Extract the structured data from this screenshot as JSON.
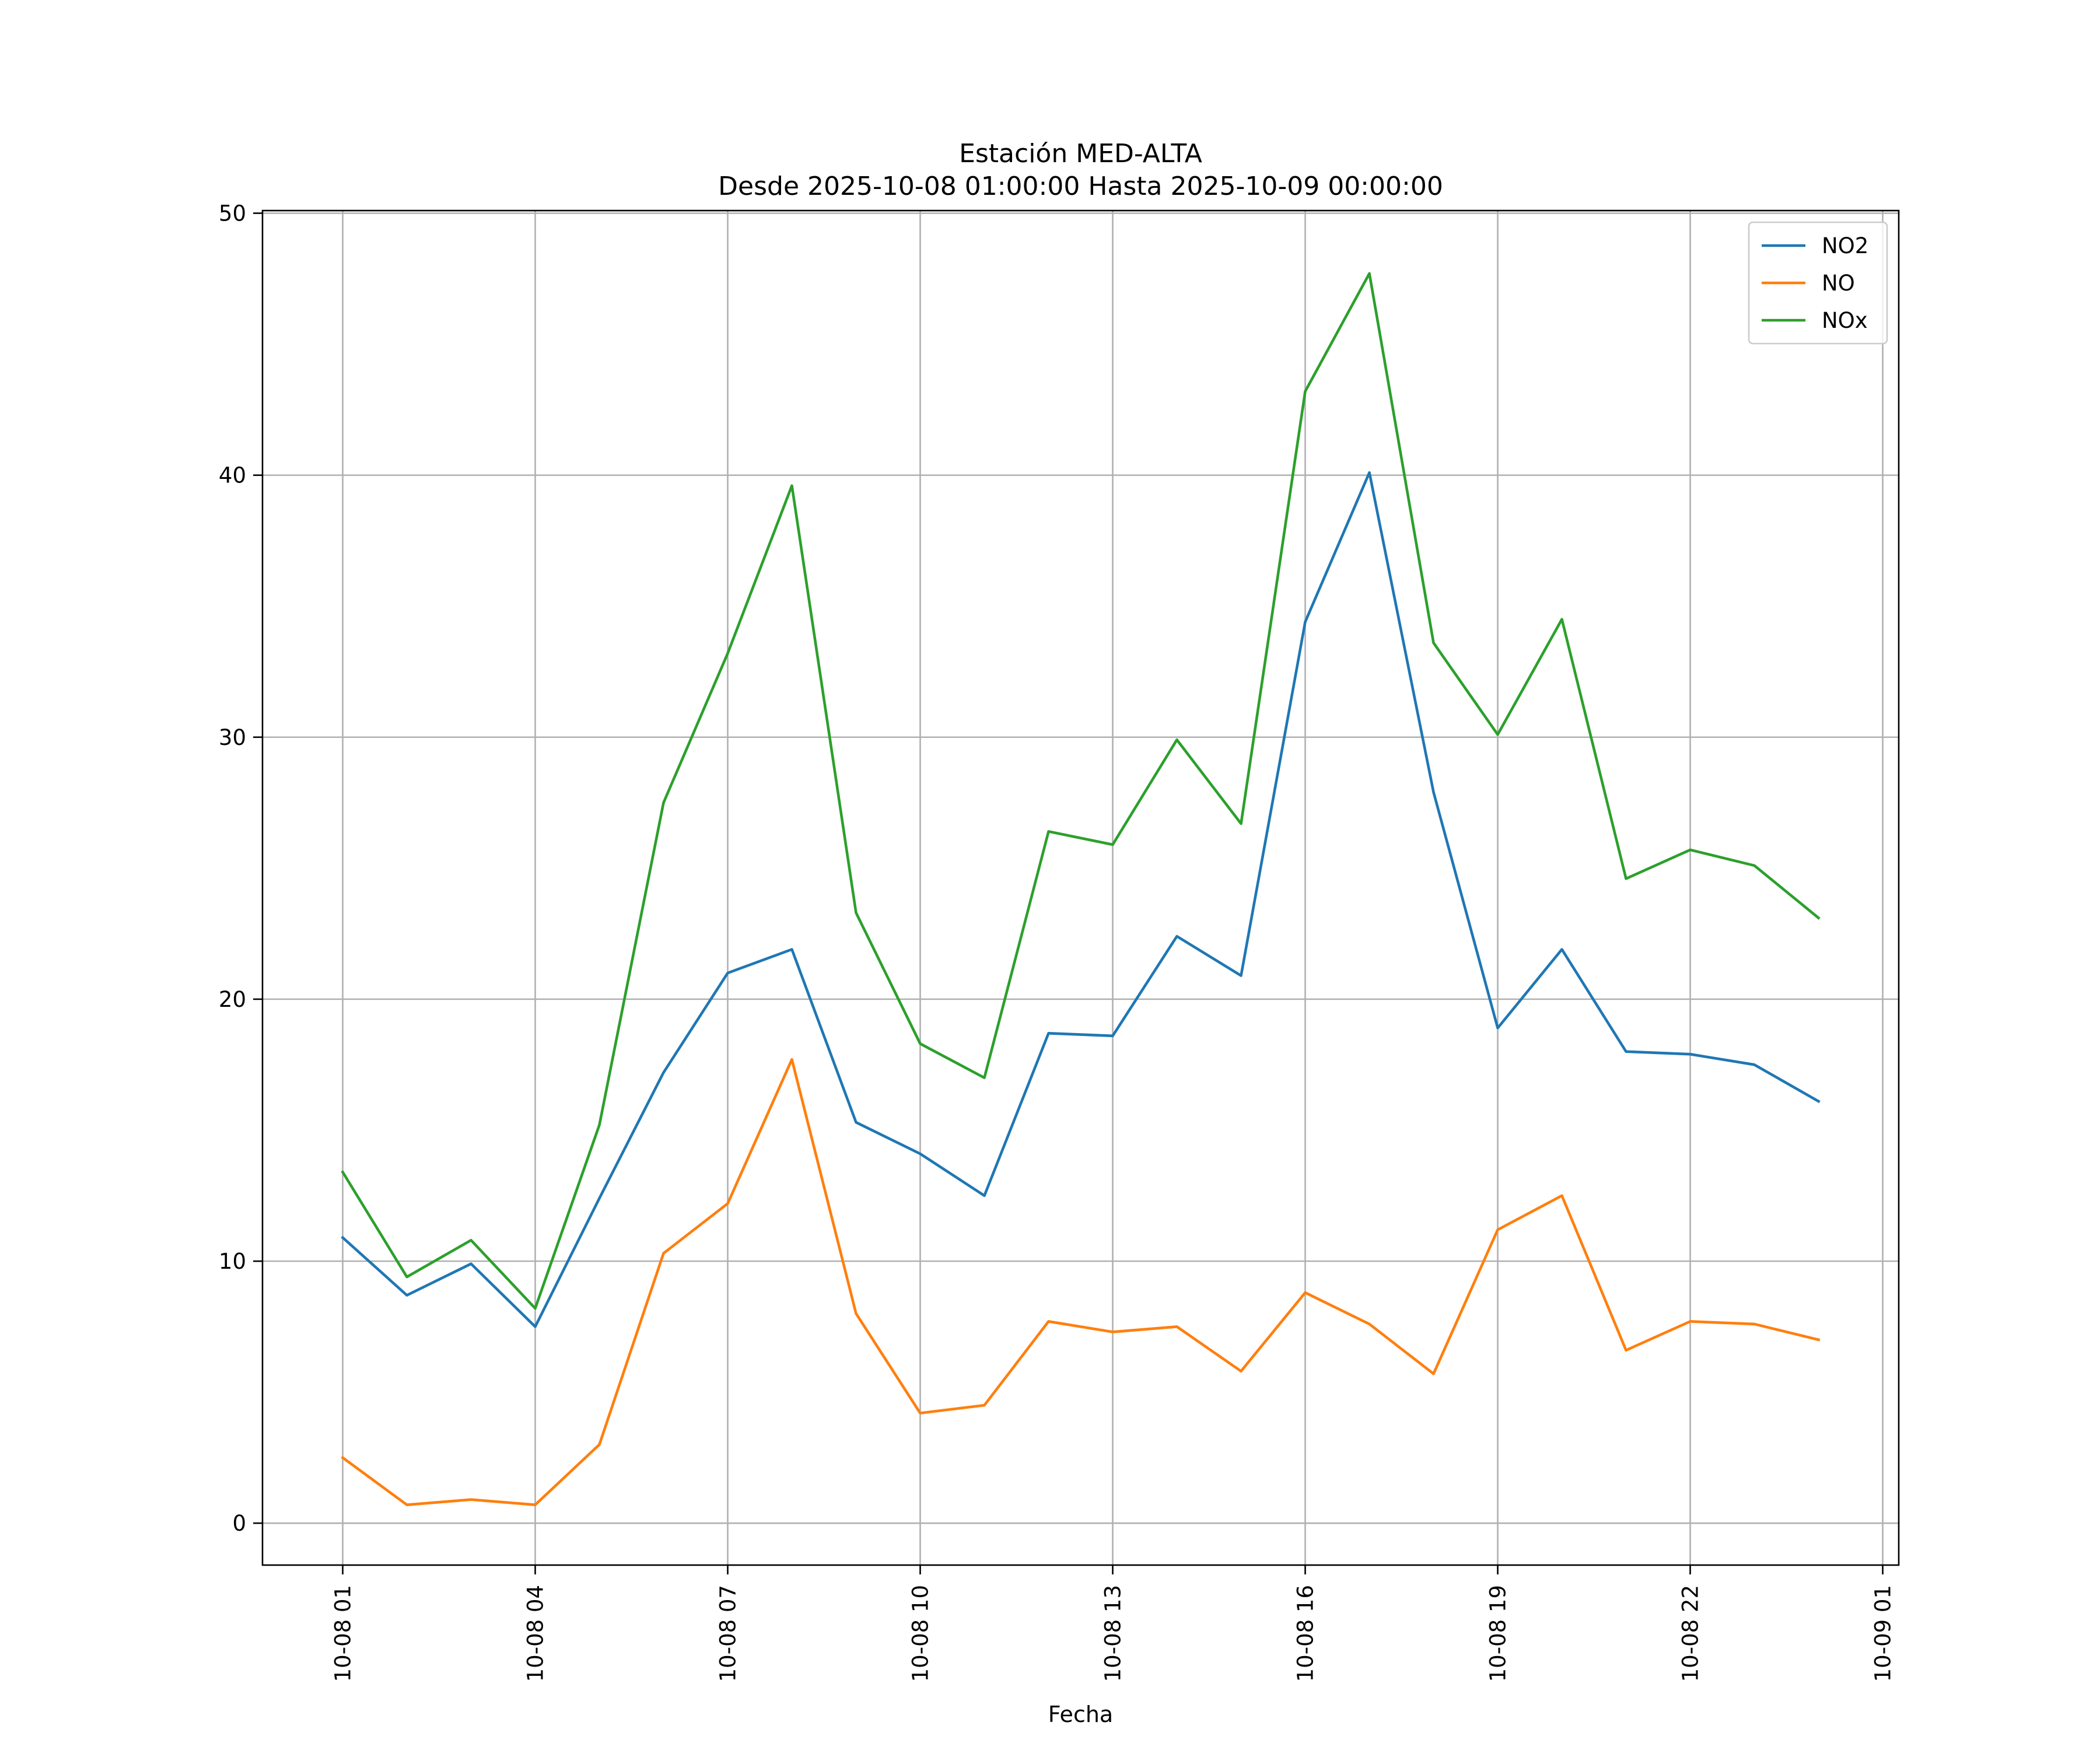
{
  "chart_data": {
    "type": "line",
    "title": "Estación MED-ALTA",
    "subtitle": "Desde 2025-10-08 01:00:00 Hasta 2025-10-09 00:00:00",
    "xlabel": "Fecha",
    "ylabel": "",
    "x": [
      "10-08 01",
      "10-08 02",
      "10-08 03",
      "10-08 04",
      "10-08 05",
      "10-08 06",
      "10-08 07",
      "10-08 08",
      "10-08 09",
      "10-08 10",
      "10-08 11",
      "10-08 12",
      "10-08 13",
      "10-08 14",
      "10-08 15",
      "10-08 16",
      "10-08 17",
      "10-08 18",
      "10-08 19",
      "10-08 20",
      "10-08 21",
      "10-08 22",
      "10-08 23",
      "10-09 00"
    ],
    "xticks": [
      "10-08 01",
      "10-08 04",
      "10-08 07",
      "10-08 10",
      "10-08 13",
      "10-08 16",
      "10-08 19",
      "10-08 22",
      "10-09 01"
    ],
    "xlim": [
      -1.25,
      24.25
    ],
    "ylim": [
      -1.6,
      50.1
    ],
    "yticks": [
      0,
      10,
      20,
      30,
      40,
      50
    ],
    "grid": true,
    "legend_position": "top-right",
    "series": [
      {
        "name": "NO2",
        "color": "#1f77b4",
        "values": [
          10.9,
          8.7,
          9.9,
          7.5,
          12.4,
          17.2,
          21.0,
          21.9,
          15.3,
          14.1,
          12.5,
          18.7,
          18.6,
          22.4,
          20.9,
          34.4,
          40.1,
          27.9,
          18.9,
          21.9,
          18.0,
          17.9,
          17.5,
          16.1
        ]
      },
      {
        "name": "NO",
        "color": "#ff7f0e",
        "values": [
          2.5,
          0.7,
          0.9,
          0.7,
          3.0,
          10.3,
          12.2,
          17.7,
          8.0,
          4.2,
          4.5,
          7.7,
          7.3,
          7.5,
          5.8,
          8.8,
          7.6,
          5.7,
          11.2,
          12.5,
          6.6,
          7.7,
          7.6,
          7.0
        ]
      },
      {
        "name": "NOx",
        "color": "#2ca02c",
        "values": [
          13.4,
          9.4,
          10.8,
          8.2,
          15.2,
          27.5,
          33.2,
          39.6,
          23.3,
          18.3,
          17.0,
          26.4,
          25.9,
          29.9,
          26.7,
          43.2,
          47.7,
          33.6,
          30.1,
          34.5,
          24.6,
          25.7,
          25.1,
          23.1
        ]
      }
    ]
  }
}
